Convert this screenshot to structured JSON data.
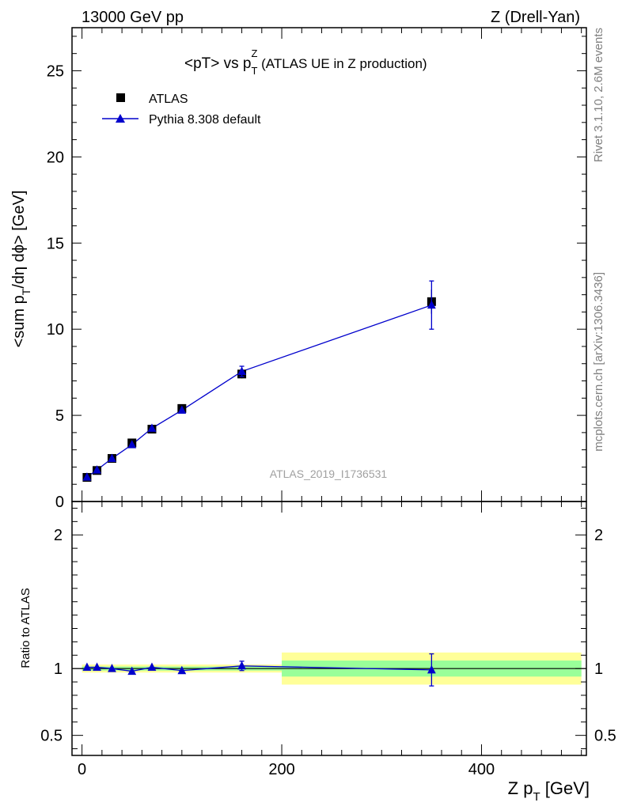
{
  "header": {
    "left": "13000 GeV pp",
    "right": "Z (Drell-Yan)"
  },
  "side_labels": {
    "rivet": "Rivet 3.1.10,  2.6M events",
    "mcplots": "mcplots.cern.ch [arXiv:1306.3436]"
  },
  "watermark": "ATLAS_2019_I1736531",
  "colors": {
    "data": "#000000",
    "mc": "#0000cc",
    "band_inner": "#99ff99",
    "band_outer": "#ffff99"
  },
  "chart_data": [
    {
      "type": "scatter",
      "title_main": "<pT> vs p",
      "title_sup": "Z",
      "title_sub": "T",
      "title_rest": " (ATLAS UE in Z production)",
      "ylabel_pre": "<sum p",
      "ylabel_sub": "T",
      "ylabel_post": "/dη dϕ> [GeV]",
      "xlim": [
        -10,
        505
      ],
      "ylim": [
        0,
        27.5
      ],
      "yticks": [
        0,
        5,
        10,
        15,
        20,
        25
      ],
      "ytick_labels": [
        "0",
        "5",
        "10",
        "15",
        "20",
        "25"
      ],
      "legend_position": "top-left",
      "series": [
        {
          "name": "ATLAS",
          "marker": "square",
          "x": [
            5,
            15,
            30,
            50,
            70,
            100,
            160,
            350
          ],
          "y": [
            1.4,
            1.8,
            2.5,
            3.4,
            4.2,
            5.4,
            7.4,
            11.6
          ],
          "yerr": [
            0.05,
            0.06,
            0.08,
            0.1,
            0.12,
            0.15,
            0.25,
            0.7
          ]
        },
        {
          "name": "Pythia 8.308 default",
          "marker": "triangle",
          "x": [
            5,
            15,
            30,
            50,
            70,
            100,
            160,
            350
          ],
          "y": [
            1.42,
            1.83,
            2.5,
            3.3,
            4.25,
            5.3,
            7.55,
            11.4
          ],
          "yerr": [
            0.02,
            0.02,
            0.03,
            0.04,
            0.05,
            0.06,
            0.3,
            1.4
          ]
        }
      ]
    },
    {
      "type": "scatter",
      "ylabel": "Ratio to ATLAS",
      "xlabel_pre": "Z p",
      "xlabel_sub": "T",
      "xlabel_post": " [GeV]",
      "xlim": [
        -10,
        505
      ],
      "ylim": [
        0.35,
        2.25
      ],
      "xticks": [
        0,
        200,
        400
      ],
      "xtick_labels": [
        "0",
        "200",
        "400"
      ],
      "yticks": [
        0.5,
        1,
        2
      ],
      "ytick_labels": [
        "0.5",
        "1",
        "2"
      ],
      "bands": [
        {
          "x0": 0,
          "x1": 200,
          "inner": [
            0.985,
            1.015
          ],
          "outer": [
            0.97,
            1.03
          ]
        },
        {
          "x0": 200,
          "x1": 500,
          "inner": [
            0.94,
            1.06
          ],
          "outer": [
            0.88,
            1.12
          ]
        }
      ],
      "series": [
        {
          "name": "Pythia 8.308 default",
          "marker": "triangle",
          "x": [
            5,
            15,
            30,
            50,
            70,
            100,
            160,
            350
          ],
          "y": [
            1.01,
            1.01,
            1.0,
            0.98,
            1.01,
            0.985,
            1.02,
            0.99
          ],
          "yerr": [
            0.005,
            0.005,
            0.006,
            0.008,
            0.008,
            0.01,
            0.035,
            0.12
          ]
        }
      ]
    }
  ]
}
